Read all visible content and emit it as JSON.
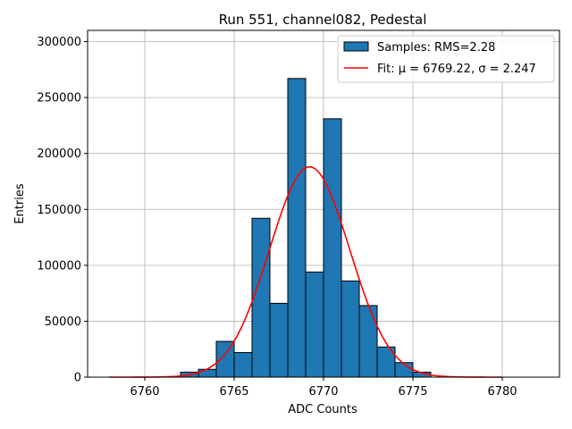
{
  "chart_data": {
    "type": "bar",
    "title": "Run 551, channel082, Pedestal",
    "xlabel": "ADC Counts",
    "ylabel": "Entries",
    "xlim": [
      6756.8,
      6783.2
    ],
    "ylim": [
      0,
      310000
    ],
    "xticks": [
      6760,
      6765,
      6770,
      6775,
      6780
    ],
    "yticks": [
      0,
      50000,
      100000,
      150000,
      200000,
      250000,
      300000
    ],
    "grid": true,
    "legend_position": "top-right",
    "bin_width": 1,
    "bin_starts": [
      6762,
      6763,
      6764,
      6765,
      6766,
      6767,
      6768,
      6769,
      6770,
      6771,
      6772,
      6773,
      6774,
      6775
    ],
    "values": [
      4500,
      7000,
      32000,
      22000,
      142000,
      66000,
      267000,
      94000,
      231000,
      86000,
      64000,
      27000,
      13000,
      4500
    ],
    "fit": {
      "mu": 6769.22,
      "sigma": 2.247,
      "amplitude": 188000,
      "x_range": [
        6758,
        6780
      ]
    },
    "series": [
      {
        "name": "Samples: RMS=2.28",
        "kind": "histogram",
        "color": "#1f77b4"
      },
      {
        "name": "Fit: μ = 6769.22, σ = 2.247",
        "kind": "line",
        "color": "#ff0000"
      }
    ]
  }
}
